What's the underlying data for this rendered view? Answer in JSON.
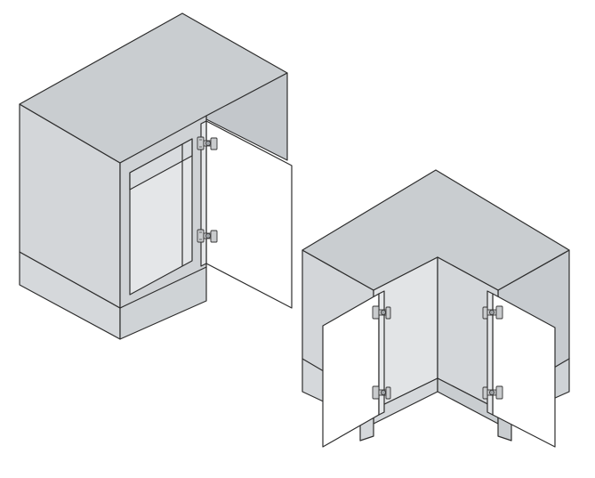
{
  "colors": {
    "cabinet_top": "#c9cdd0",
    "cabinet_side": "#d3d6d9",
    "cabinet_dark": "#b9bdc1",
    "plinth": "#d5d8db",
    "interior": "#e4e6e8",
    "door": "#ffffff",
    "hinge": "#c9cbcd",
    "outline": "#2e2e2e"
  },
  "icons": {
    "hinge": "concealed-cabinet-hinge"
  }
}
